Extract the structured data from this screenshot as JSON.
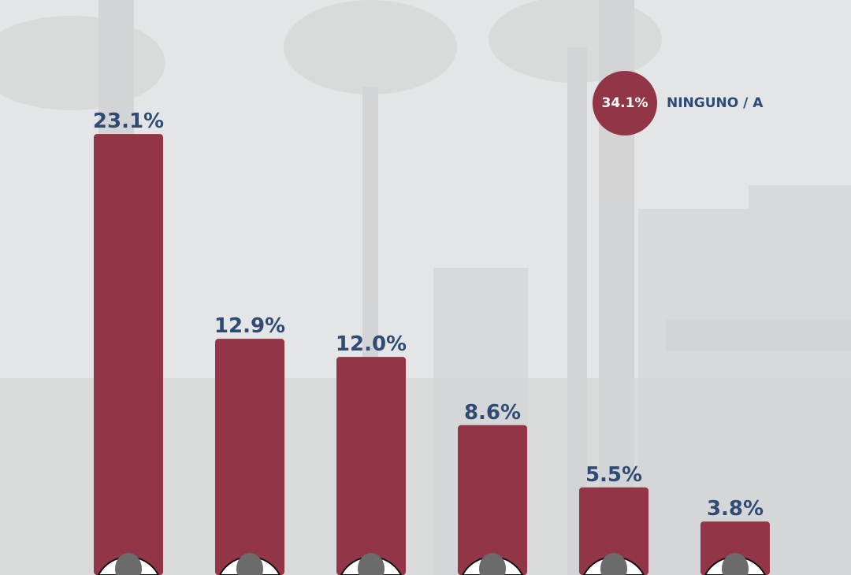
{
  "chart_data": {
    "type": "bar",
    "categories": [
      "",
      "",
      "",
      "",
      "",
      ""
    ],
    "values": [
      23.1,
      12.9,
      12.0,
      8.6,
      5.5,
      3.8
    ],
    "value_labels": [
      "23.1%",
      "12.9%",
      "12.0%",
      "8.6%",
      "5.5%",
      "3.8%"
    ],
    "ylim": [
      0,
      25
    ],
    "grid": false,
    "legend": {
      "value": "34.1%",
      "label": "NINGUNO / A",
      "placement": "top-right"
    }
  },
  "colors": {
    "bar": "#923546",
    "label": "#2f4a75",
    "background": "#e4e5e6"
  }
}
